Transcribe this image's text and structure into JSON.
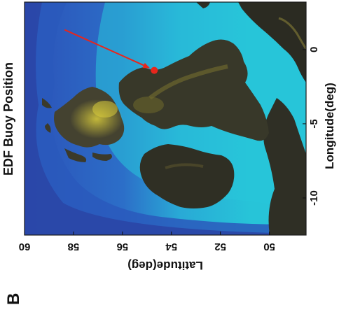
{
  "panel_label": "B",
  "chart_data": {
    "type": "scatter",
    "title": "EDF Buoy Position",
    "xlabel": "Longitude(deg)",
    "ylabel": "Latitude(deg)",
    "xlim": [
      -12.5,
      3.2
    ],
    "ylim": [
      48.5,
      60
    ],
    "x_ticks": [
      -10,
      -5,
      0
    ],
    "y_ticks": [
      50,
      52,
      54,
      56,
      58,
      60
    ],
    "x_tick_labels": [
      "-10",
      "-5",
      "0"
    ],
    "y_tick_labels": [
      "50",
      "52",
      "54",
      "56",
      "58",
      "60"
    ],
    "points": [
      {
        "x": -1.4,
        "y": 54.7
      }
    ],
    "point_color": "#e8261c",
    "arrow_color": "#e8261c",
    "background": "bathymetry and topography map",
    "colors": {
      "deep_sea": "#2c52b8",
      "shallow_sea": "#27c4d8",
      "lowland": "#3a3a2c",
      "highland": "#d9cc3c"
    }
  }
}
